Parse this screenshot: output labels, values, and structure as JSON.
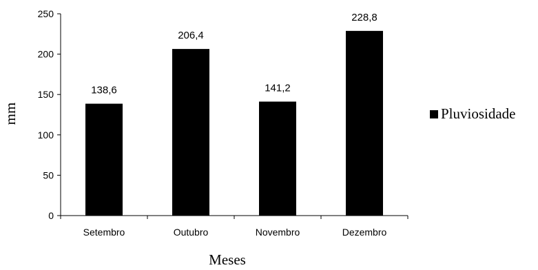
{
  "chart_data": {
    "type": "bar",
    "categories": [
      "Setembro",
      "Outubro",
      "Novembro",
      "Dezembro"
    ],
    "series": [
      {
        "name": "Pluviosidade",
        "values": [
          138.6,
          206.4,
          141.2,
          228.8
        ],
        "color": "#000000"
      }
    ],
    "data_labels": [
      "138,6",
      "206,4",
      "141,2",
      "228,8"
    ],
    "xlabel": "Meses",
    "ylabel": "mm",
    "ylim": [
      0,
      250
    ],
    "yticks": [
      0,
      50,
      100,
      150,
      200,
      250
    ],
    "grid": false,
    "legend_position": "right"
  }
}
